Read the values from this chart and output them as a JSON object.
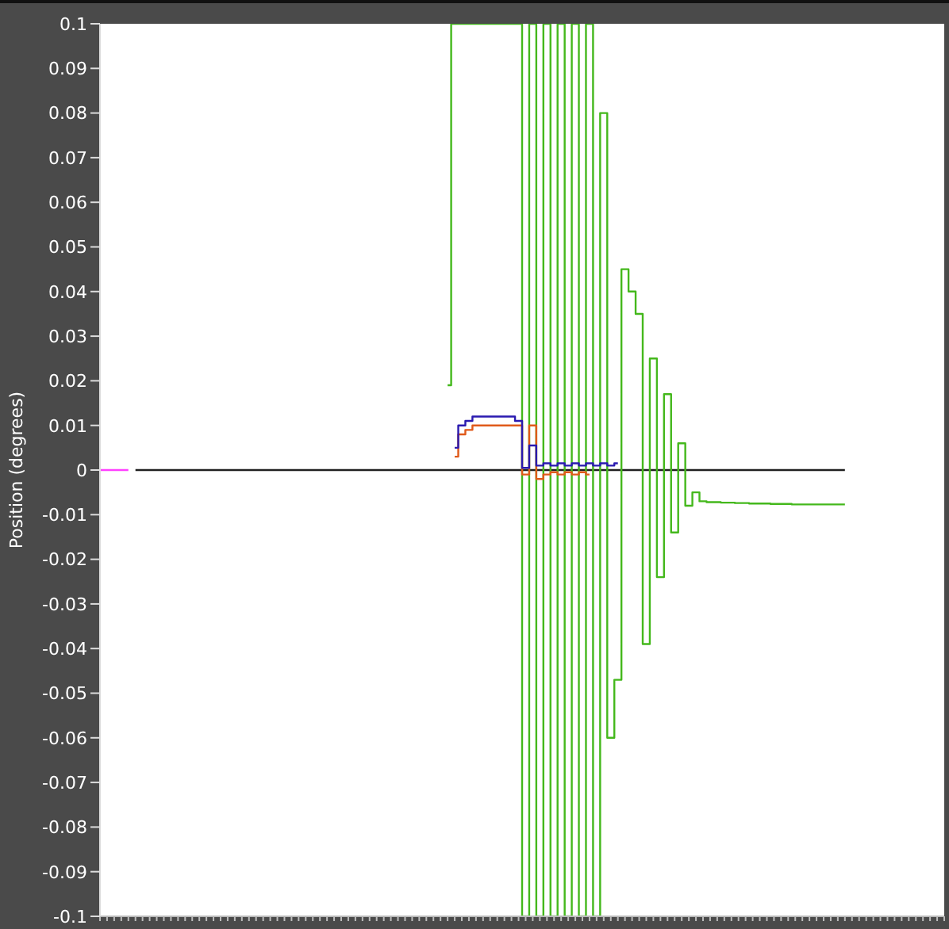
{
  "chart_data": {
    "type": "step",
    "ylabel": "Position (degrees)",
    "categories": [
      null,
      null,
      null,
      null,
      null,
      null,
      null,
      null,
      null,
      null,
      null,
      null,
      null,
      null,
      null,
      null,
      null,
      null,
      null,
      null,
      null,
      null,
      null,
      null,
      null,
      null,
      null,
      null,
      null,
      null,
      null,
      null,
      null,
      null,
      null,
      null,
      null,
      null,
      null,
      null,
      null,
      null,
      null,
      null,
      null,
      null,
      null,
      null,
      null,
      null,
      null,
      null,
      null,
      null,
      null,
      null,
      null,
      null,
      null,
      null,
      null,
      null,
      null,
      null,
      null,
      null,
      null,
      null,
      null,
      null,
      null,
      null,
      null,
      null,
      null,
      null,
      null,
      null,
      null,
      null,
      null,
      null,
      null,
      null,
      null,
      null,
      null,
      null,
      null,
      null,
      null,
      null,
      null,
      null,
      null,
      null,
      null,
      null,
      null,
      null,
      null,
      null,
      null,
      null,
      null,
      null,
      null,
      null,
      null,
      null,
      null,
      null,
      null,
      null,
      null,
      null,
      null,
      null,
      null,
      null
    ],
    "series": [
      {
        "color": "#202020",
        "values": [
          null,
          null,
          null,
          null,
          null,
          0,
          0,
          0,
          0,
          0,
          0,
          0,
          0,
          0,
          0,
          0,
          0,
          0,
          0,
          0,
          0,
          0,
          0,
          0,
          0,
          0,
          0,
          0,
          0,
          0,
          0,
          0,
          0,
          0,
          0,
          0,
          0,
          0,
          0,
          0,
          0,
          0,
          0,
          0,
          0,
          0,
          0,
          0,
          0,
          0,
          0,
          0,
          0,
          0,
          0,
          0,
          0,
          0,
          0,
          0,
          0,
          0,
          0,
          0,
          0,
          0,
          0,
          0,
          0,
          0,
          0,
          0,
          0,
          0,
          0,
          0,
          0,
          0,
          0,
          0,
          0,
          0,
          0,
          0,
          0,
          0,
          0,
          0,
          0,
          0,
          0,
          0,
          0,
          0,
          0,
          0,
          0,
          0,
          0,
          0,
          0,
          0,
          0,
          0,
          0,
          0,
          null,
          null,
          null,
          null,
          null,
          null,
          null,
          null,
          null,
          null,
          null,
          null,
          null,
          null
        ]
      },
      {
        "color": "#ff40ff",
        "values": [
          0,
          0,
          0,
          0,
          0,
          null,
          null,
          null,
          null,
          null,
          null,
          null,
          null,
          null,
          null,
          null,
          null,
          null,
          null,
          null,
          null,
          null,
          null,
          null,
          null,
          null,
          null,
          null,
          null,
          null,
          null,
          null,
          null,
          null,
          null,
          null,
          null,
          null,
          null,
          null,
          null,
          null,
          null,
          null,
          null,
          null,
          null,
          null,
          null,
          null,
          null,
          null,
          null,
          null,
          null,
          null,
          null,
          null,
          null,
          null,
          null,
          null,
          null,
          null,
          null,
          null,
          null,
          null,
          null,
          null,
          null,
          null,
          null,
          null,
          null,
          null,
          null,
          null,
          null,
          null,
          null,
          null,
          null,
          null,
          null,
          null,
          null,
          null,
          null,
          null,
          null,
          null,
          null,
          null,
          null,
          null,
          null,
          null,
          null,
          null,
          null,
          null,
          null,
          null,
          null,
          null,
          null,
          null,
          null,
          null,
          null,
          null,
          null,
          null,
          null,
          null,
          null,
          null,
          null,
          null
        ]
      },
      {
        "color": "#44b81c",
        "values": [
          null,
          null,
          null,
          null,
          null,
          null,
          null,
          null,
          null,
          null,
          null,
          null,
          null,
          null,
          null,
          null,
          null,
          null,
          null,
          null,
          null,
          null,
          null,
          null,
          null,
          null,
          null,
          null,
          null,
          null,
          null,
          null,
          null,
          null,
          null,
          null,
          null,
          null,
          null,
          null,
          null,
          null,
          null,
          null,
          null,
          null,
          null,
          null,
          null,
          0.019,
          0.1,
          0.1,
          0.1,
          0.1,
          0.1,
          0.1,
          0.1,
          0.1,
          0.1,
          0.1,
          -0.1,
          0.1,
          -0.1,
          0.1,
          -0.1,
          0.1,
          -0.1,
          0.1,
          -0.1,
          0.1,
          -0.1,
          0.08,
          -0.06,
          -0.047,
          0.045,
          0.04,
          0.035,
          -0.039,
          0.025,
          -0.024,
          0.017,
          -0.014,
          0.006,
          -0.008,
          -0.005,
          -0.007,
          -0.0072,
          -0.0072,
          -0.0073,
          -0.0073,
          -0.0074,
          -0.0074,
          -0.0075,
          -0.0075,
          -0.0075,
          -0.0076,
          -0.0076,
          -0.0076,
          -0.0077,
          -0.0077,
          -0.0077,
          -0.0077,
          -0.0077,
          -0.0077,
          -0.0077,
          -0.0077,
          null,
          null,
          null,
          null,
          null,
          null,
          null,
          null,
          null,
          null,
          null,
          null,
          null,
          null
        ]
      },
      {
        "color": "#e05a1a",
        "values": [
          null,
          null,
          null,
          null,
          null,
          null,
          null,
          null,
          null,
          null,
          null,
          null,
          null,
          null,
          null,
          null,
          null,
          null,
          null,
          null,
          null,
          null,
          null,
          null,
          null,
          null,
          null,
          null,
          null,
          null,
          null,
          null,
          null,
          null,
          null,
          null,
          null,
          null,
          null,
          null,
          null,
          null,
          null,
          null,
          null,
          null,
          null,
          null,
          null,
          null,
          0.003,
          0.008,
          0.009,
          0.01,
          0.01,
          0.01,
          0.01,
          0.01,
          0.01,
          0.01,
          -0.001,
          0.01,
          -0.002,
          -0.001,
          -0.0005,
          -0.001,
          -0.0005,
          -0.001,
          -0.0005,
          -0.001,
          null,
          null,
          null,
          null,
          null,
          null,
          null,
          null,
          null,
          null,
          null,
          null,
          null,
          null,
          null,
          null,
          null,
          null,
          null,
          null,
          null,
          null,
          null,
          null,
          null,
          null,
          null,
          null,
          null,
          null,
          null,
          null,
          null,
          null,
          null,
          null,
          null,
          null,
          null,
          null,
          null,
          null,
          null,
          null,
          null,
          null,
          null,
          null,
          null,
          null
        ]
      },
      {
        "color": "#2a1ab0",
        "values": [
          null,
          null,
          null,
          null,
          null,
          null,
          null,
          null,
          null,
          null,
          null,
          null,
          null,
          null,
          null,
          null,
          null,
          null,
          null,
          null,
          null,
          null,
          null,
          null,
          null,
          null,
          null,
          null,
          null,
          null,
          null,
          null,
          null,
          null,
          null,
          null,
          null,
          null,
          null,
          null,
          null,
          null,
          null,
          null,
          null,
          null,
          null,
          null,
          null,
          null,
          0.005,
          0.01,
          0.011,
          0.012,
          0.012,
          0.012,
          0.012,
          0.012,
          0.012,
          0.011,
          0.0005,
          0.0055,
          0.001,
          0.0015,
          0.001,
          0.0015,
          0.001,
          0.0015,
          0.001,
          0.0015,
          0.001,
          0.0015,
          0.001,
          0.0015,
          null,
          null,
          null,
          null,
          null,
          null,
          null,
          null,
          null,
          null,
          null,
          null,
          null,
          null,
          null,
          null,
          null,
          null,
          null,
          null,
          null,
          null,
          null,
          null,
          null,
          null,
          null,
          null,
          null,
          null,
          null,
          null,
          null,
          null,
          null,
          null,
          null,
          null,
          null,
          null,
          null,
          null,
          null,
          null,
          null,
          null
        ]
      }
    ],
    "ylim": [
      -0.1,
      0.1
    ],
    "yticks": [
      -0.1,
      -0.09,
      -0.08,
      -0.07,
      -0.06,
      -0.05,
      -0.04,
      -0.03,
      -0.02,
      -0.01,
      0,
      0.01,
      0.02,
      0.03,
      0.04,
      0.05,
      0.06,
      0.07,
      0.08,
      0.09,
      0.1
    ],
    "tick_labels": "y",
    "grid": false,
    "marker": "none"
  }
}
